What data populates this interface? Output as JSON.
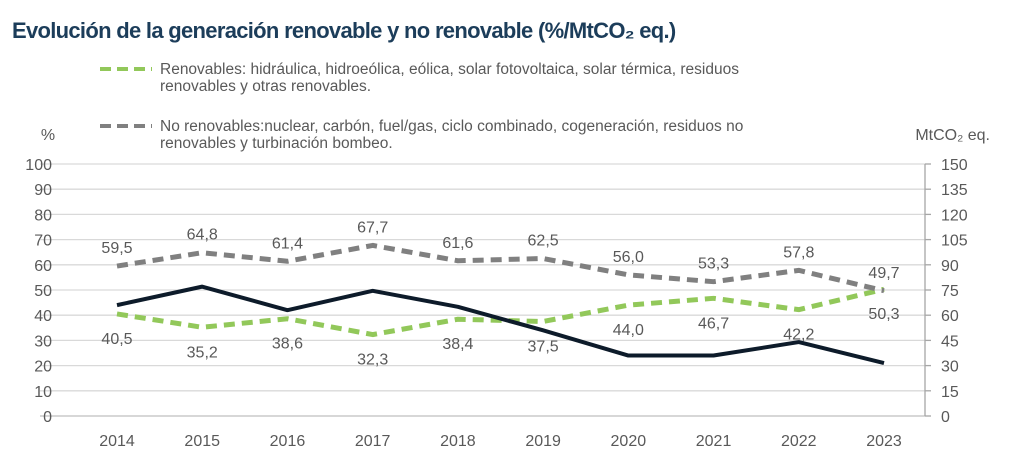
{
  "title": "Evolución de la generación renovable y no renovable (%/MtCO₂ eq.)",
  "chart_data": {
    "type": "line",
    "title": "Evolución de la generación renovable y no renovable (%/MtCO₂ eq.)",
    "categories": [
      "2014",
      "2015",
      "2016",
      "2017",
      "2018",
      "2019",
      "2020",
      "2021",
      "2022",
      "2023"
    ],
    "y_left": {
      "label": "%",
      "range": [
        0,
        100
      ],
      "ticks": [
        "0",
        "10",
        "20",
        "30",
        "40",
        "50",
        "60",
        "70",
        "80",
        "90",
        "100"
      ]
    },
    "y_right": {
      "label": "MtCO₂ eq.",
      "range": [
        0,
        150
      ],
      "ticks": [
        "0",
        "15",
        "30",
        "45",
        "60",
        "75",
        "90",
        "105",
        "120",
        "135",
        "150"
      ]
    },
    "grid": true,
    "legend_position": "top",
    "series": [
      {
        "name": "Renovables: hidráulica, hidroeólica, eólica, solar fotovoltaica, solar térmica, residuos renovables y otras renovables.",
        "legend_lines": [
          "Renovables: hidráulica, hidroeólica, eólica, solar fotovoltaica, solar térmica, residuos",
          "renovables y otras renovables."
        ],
        "axis": "left",
        "style": "dashed",
        "color": "#92c85a",
        "values": [
          40.5,
          35.2,
          38.6,
          32.3,
          38.4,
          37.5,
          44.0,
          46.7,
          42.2,
          50.3
        ],
        "labels": [
          "40,5",
          "35,2",
          "38,6",
          "32,3",
          "38,4",
          "37,5",
          "44,0",
          "46,7",
          "42,2",
          "50,3"
        ]
      },
      {
        "name": "No renovables:nuclear, carbón, fuel/gas, ciclo combinado, cogeneración, residuos no renovables y turbinación bombeo.",
        "legend_lines": [
          "No renovables:nuclear, carbón, fuel/gas, ciclo combinado, cogeneración, residuos no",
          "renovables y turbinación bombeo."
        ],
        "axis": "left",
        "style": "dashed",
        "color": "#808080",
        "values": [
          59.5,
          64.8,
          61.4,
          67.7,
          61.6,
          62.5,
          56.0,
          53.3,
          57.8,
          49.7
        ],
        "labels": [
          "59,5",
          "64,8",
          "61,4",
          "67,7",
          "61,6",
          "62,5",
          "56,0",
          "53,3",
          "57,8",
          "49,7"
        ]
      },
      {
        "axis": "right",
        "style": "solid",
        "color": "#0d1b2a",
        "values": [
          66,
          77,
          63,
          74.5,
          65,
          51,
          36,
          36,
          44,
          31.5
        ]
      }
    ]
  }
}
